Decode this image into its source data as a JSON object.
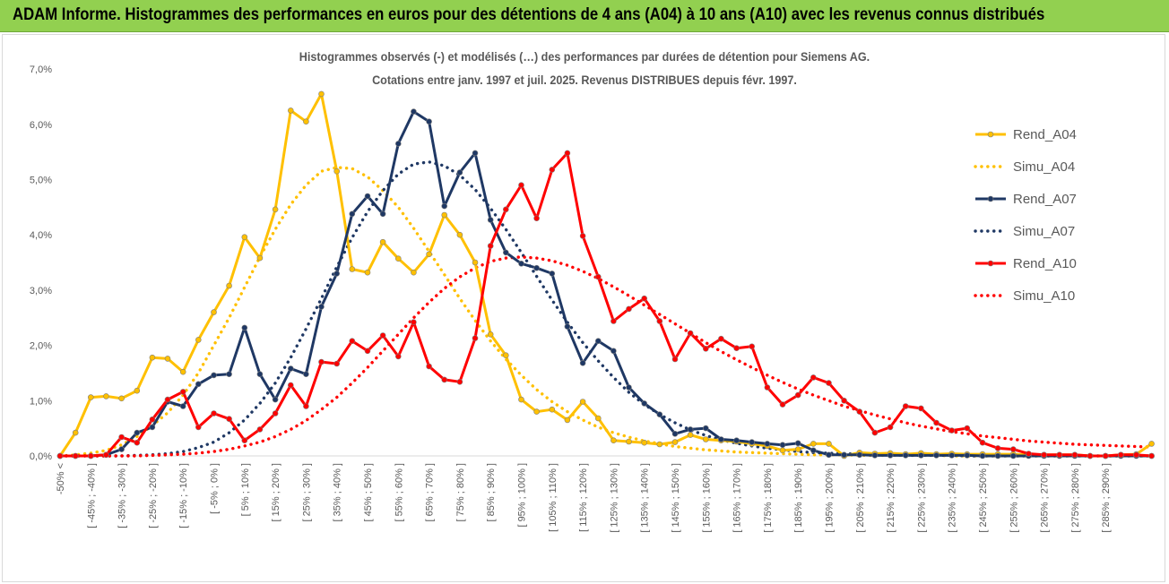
{
  "banner": {
    "title": "ADAM Informe. Histogrammes des performances en euros pour des détentions de 4 ans (A04) à 10 ans (A10) avec les revenus connus distribués"
  },
  "chart_data": {
    "type": "line",
    "title_line1": "Histogrammes observés (-) et modélisés (…) des performances par durées de détention pour Siemens AG.",
    "title_line2": "Cotations entre janv. 1997 et juil. 2025. Revenus DISTRIBUES depuis févr. 1997.",
    "xlabel": "",
    "ylabel": "",
    "ylim": [
      0,
      7
    ],
    "yticks": [
      "0,0%",
      "1,0%",
      "2,0%",
      "3,0%",
      "4,0%",
      "5,0%",
      "6,0%",
      "7,0%"
    ],
    "legend_position": "right",
    "grid": false,
    "x_labels_shown": [
      "-50% <",
      "[ -45% ; -40% ]",
      "[ -35% ; -30% ]",
      "[ -25% ; -20% ]",
      "[ -15% ; -10% ]",
      "[ -5% ; 0% ]",
      "[ 5% ; 10% ]",
      "[ 15% ; 20% ]",
      "[ 25% ; 30% ]",
      "[ 35% ; 40% ]",
      "[ 45% ; 50% ]",
      "[ 55% ; 60% ]",
      "[ 65% ; 70% ]",
      "[ 75% ; 80% ]",
      "[ 85% ; 90% ]",
      "[ 95% ; 100% ]",
      "[ 105% ; 110% ]",
      "[ 115% ; 120% ]",
      "[ 125% ; 130% ]",
      "[ 135% ; 140% ]",
      "[ 145% ; 150% ]",
      "[ 155% ; 160% ]",
      "[ 165% ; 170% ]",
      "[ 175% ; 180% ]",
      "[ 185% ; 190% ]",
      "[ 195% ; 200% ]",
      "[ 205% ; 210% ]",
      "[ 215% ; 220% ]",
      "[ 225% ; 230% ]",
      "[ 235% ; 240% ]",
      "[ 245% ; 250% ]",
      "[ 255% ; 260% ]",
      "[ 265% ; 270% ]",
      "[ 275% ; 280% ]",
      "[ 285% ; 290% ]"
    ],
    "series": [
      {
        "name": "Rend_A04",
        "style": "solid",
        "markers": true,
        "color": "#ffc000",
        "values": [
          0,
          0.42,
          1.06,
          1.08,
          1.04,
          1.18,
          1.78,
          1.76,
          1.52,
          2.1,
          2.6,
          3.08,
          3.96,
          3.58,
          4.46,
          6.25,
          6.05,
          6.55,
          5.15,
          3.38,
          3.32,
          3.87,
          3.57,
          3.32,
          3.65,
          4.36,
          4.0,
          3.5,
          2.2,
          1.82,
          1.02,
          0.8,
          0.84,
          0.65,
          0.98,
          0.68,
          0.28,
          0.26,
          0.24,
          0.21,
          0.25,
          0.38,
          0.3,
          0.28,
          0.26,
          0.22,
          0.18,
          0.1,
          0.12,
          0.22,
          0.22,
          0.0,
          0.06,
          0.04,
          0.05,
          0.03,
          0.05,
          0.03,
          0.04,
          0.03,
          0.03,
          0.03,
          0.03,
          0.02,
          0.02,
          0.02,
          0.02,
          0.0,
          0.0,
          0.02,
          0.03,
          0.22
        ]
      },
      {
        "name": "Simu_A04",
        "style": "dotted",
        "markers": false,
        "color": "#ffc000",
        "values": [
          0.0,
          0.02,
          0.05,
          0.1,
          0.2,
          0.35,
          0.55,
          0.78,
          1.1,
          1.5,
          2.0,
          2.5,
          3.05,
          3.6,
          4.1,
          4.55,
          4.9,
          5.15,
          5.22,
          5.2,
          5.05,
          4.8,
          4.5,
          4.12,
          3.7,
          3.28,
          2.85,
          2.45,
          2.08,
          1.75,
          1.46,
          1.2,
          0.98,
          0.8,
          0.65,
          0.52,
          0.42,
          0.34,
          0.27,
          0.22,
          0.17,
          0.14,
          0.11,
          0.09,
          0.07,
          0.06,
          0.05,
          0.04,
          0.03,
          0.02,
          0.02,
          0.02,
          0.01,
          0.01,
          0.01,
          0.01,
          0.01,
          0.01,
          0.0,
          0.0,
          0.0,
          0.0,
          0.0,
          0.0,
          0.0,
          0.0,
          0.0,
          0.0,
          0.0,
          0.0,
          0.0,
          0.0
        ]
      },
      {
        "name": "Rend_A07",
        "style": "solid",
        "markers": true,
        "color": "#1f3864",
        "values": [
          0,
          0,
          0,
          0.02,
          0.12,
          0.42,
          0.52,
          0.98,
          0.9,
          1.3,
          1.46,
          1.48,
          2.32,
          1.48,
          1.02,
          1.58,
          1.48,
          2.7,
          3.3,
          4.38,
          4.7,
          4.38,
          5.65,
          6.23,
          6.05,
          4.52,
          5.13,
          5.48,
          4.27,
          3.68,
          3.48,
          3.4,
          3.3,
          2.34,
          1.68,
          2.08,
          1.9,
          1.24,
          0.95,
          0.75,
          0.4,
          0.48,
          0.5,
          0.3,
          0.28,
          0.25,
          0.22,
          0.2,
          0.23,
          0.1,
          0.02,
          0.02,
          0.02,
          0.01,
          0.01,
          0.01,
          0.01,
          0.01,
          0.01,
          0.01,
          0.0,
          0.0,
          0.0,
          0.0,
          0.0,
          0.0,
          0.0,
          0.0,
          0.0,
          0.0,
          0.0,
          0.0
        ]
      },
      {
        "name": "Simu_A07",
        "style": "dotted",
        "markers": false,
        "color": "#1f3864",
        "values": [
          0.0,
          0.0,
          0.0,
          0.0,
          0.0,
          0.01,
          0.02,
          0.04,
          0.08,
          0.15,
          0.25,
          0.42,
          0.65,
          0.95,
          1.32,
          1.78,
          2.3,
          2.85,
          3.42,
          3.95,
          4.42,
          4.8,
          5.1,
          5.28,
          5.32,
          5.25,
          5.08,
          4.82,
          4.48,
          4.1,
          3.68,
          3.25,
          2.82,
          2.42,
          2.05,
          1.72,
          1.42,
          1.15,
          0.93,
          0.75,
          0.6,
          0.47,
          0.37,
          0.29,
          0.23,
          0.18,
          0.14,
          0.11,
          0.08,
          0.06,
          0.05,
          0.04,
          0.03,
          0.02,
          0.02,
          0.01,
          0.01,
          0.01,
          0.01,
          0.0,
          0.0,
          0.0,
          0.0,
          0.0,
          0.0,
          0.0,
          0.0,
          0.0,
          0.0,
          0.0,
          0.0,
          0.0
        ]
      },
      {
        "name": "Rend_A10",
        "style": "solid",
        "markers": true,
        "color": "#ff0000",
        "values": [
          0,
          0,
          0,
          0.02,
          0.34,
          0.24,
          0.66,
          1.02,
          1.16,
          0.52,
          0.77,
          0.67,
          0.28,
          0.48,
          0.77,
          1.28,
          0.9,
          1.7,
          1.67,
          2.08,
          1.9,
          2.18,
          1.8,
          2.42,
          1.62,
          1.38,
          1.34,
          2.13,
          3.8,
          4.46,
          4.9,
          4.3,
          5.18,
          5.48,
          3.98,
          3.24,
          2.44,
          2.66,
          2.85,
          2.44,
          1.75,
          2.22,
          1.94,
          2.12,
          1.95,
          1.98,
          1.24,
          0.93,
          1.1,
          1.42,
          1.32,
          1.0,
          0.8,
          0.42,
          0.52,
          0.9,
          0.86,
          0.6,
          0.46,
          0.5,
          0.24,
          0.14,
          0.12,
          0.04,
          0.02,
          0.02,
          0.02,
          0.0,
          0.0,
          0.02,
          0.02,
          0.0
        ]
      },
      {
        "name": "Simu_A10",
        "style": "dotted",
        "markers": false,
        "color": "#ff0000",
        "values": [
          0.0,
          0.0,
          0.0,
          0.0,
          0.0,
          0.0,
          0.01,
          0.02,
          0.03,
          0.05,
          0.08,
          0.12,
          0.18,
          0.25,
          0.35,
          0.48,
          0.64,
          0.84,
          1.06,
          1.32,
          1.6,
          1.9,
          2.2,
          2.5,
          2.78,
          3.03,
          3.24,
          3.4,
          3.52,
          3.58,
          3.6,
          3.58,
          3.53,
          3.45,
          3.34,
          3.21,
          3.06,
          2.9,
          2.73,
          2.56,
          2.39,
          2.22,
          2.05,
          1.89,
          1.74,
          1.6,
          1.46,
          1.33,
          1.21,
          1.1,
          1.0,
          0.9,
          0.82,
          0.74,
          0.67,
          0.6,
          0.54,
          0.49,
          0.44,
          0.4,
          0.36,
          0.33,
          0.3,
          0.27,
          0.25,
          0.23,
          0.21,
          0.2,
          0.19,
          0.18,
          0.17,
          0.16
        ]
      }
    ]
  }
}
